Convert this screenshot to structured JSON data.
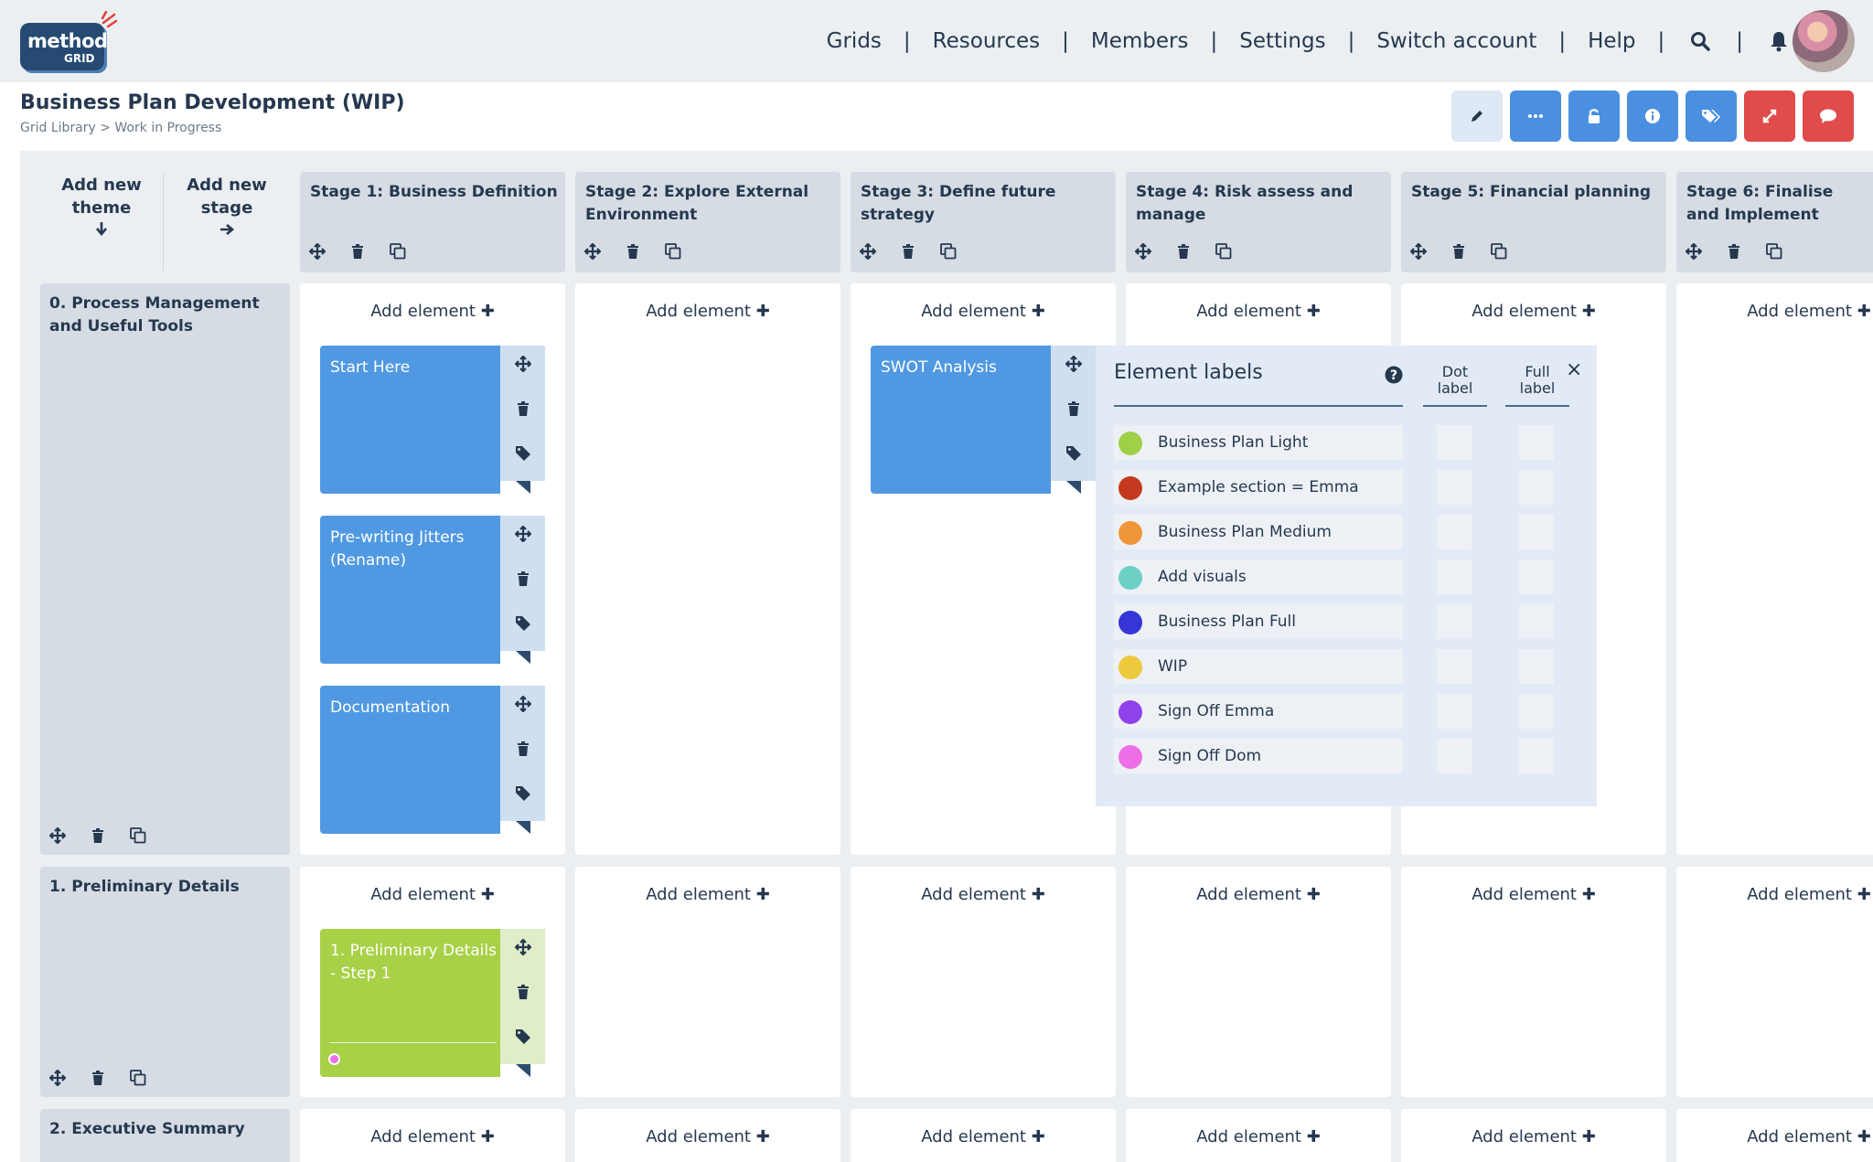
{
  "header": {
    "logo_line1": "method",
    "logo_line2": "GRID",
    "nav": [
      "Grids",
      "Resources",
      "Members",
      "Settings",
      "Switch account",
      "Help"
    ],
    "separator": "|"
  },
  "page": {
    "title": "Business Plan Development (WIP)",
    "breadcrumb": "Grid Library > Work in Progress"
  },
  "toolbar": {
    "buttons": [
      {
        "icon": "pencil-icon",
        "color": "#dfe9f5"
      },
      {
        "icon": "more-icon",
        "color": "#4a8fe0"
      },
      {
        "icon": "unlock-icon",
        "color": "#4a8fe0"
      },
      {
        "icon": "info-icon",
        "color": "#4a8fe0"
      },
      {
        "icon": "tags-icon",
        "color": "#4a8fe0"
      },
      {
        "icon": "expand-icon",
        "color": "#e04b4b"
      },
      {
        "icon": "comment-icon",
        "color": "#e04b4b"
      }
    ]
  },
  "grid": {
    "add_theme": "Add new theme",
    "add_stage": "Add new stage",
    "add_element": "Add element",
    "stages": [
      "Stage 1: Business Definition",
      "Stage 2: Explore External Environment",
      "Stage 3: Define future strategy",
      "Stage 4: Risk assess and manage",
      "Stage 5: Financial planning",
      "Stage 6: Finalise and Implement"
    ],
    "themes": [
      "0. Process Management and Useful Tools",
      "1. Preliminary Details",
      "2. Executive Summary"
    ],
    "elements": {
      "start_here": "Start Here",
      "prewriting": "Pre-writing Jitters (Rename)",
      "documentation": "Documentation",
      "swot": "SWOT Analysis",
      "preliminary": "1. Preliminary Details - Step 1"
    },
    "colors": {
      "blue_card": "#5099e2",
      "blue_side": "#cfdff0",
      "green_card": "#a8d147",
      "green_side": "#dfeec8",
      "dot_marker": "#ee6ee8"
    }
  },
  "labels_popup": {
    "title": "Element labels",
    "dot_label": "Dot label",
    "full_label": "Full label",
    "close": "×",
    "labels": [
      {
        "name": "Business Plan Light",
        "color": "#9fd048"
      },
      {
        "name": "Example section = Emma",
        "color": "#c33a20"
      },
      {
        "name": "Business Plan Medium",
        "color": "#f0963a"
      },
      {
        "name": "Add visuals",
        "color": "#6cd0c7"
      },
      {
        "name": "Business Plan Full",
        "color": "#3535d8"
      },
      {
        "name": "WIP",
        "color": "#edc93d"
      },
      {
        "name": "Sign Off Emma",
        "color": "#9042ea"
      },
      {
        "name": "Sign Off Dom",
        "color": "#ee6ee8"
      }
    ]
  }
}
